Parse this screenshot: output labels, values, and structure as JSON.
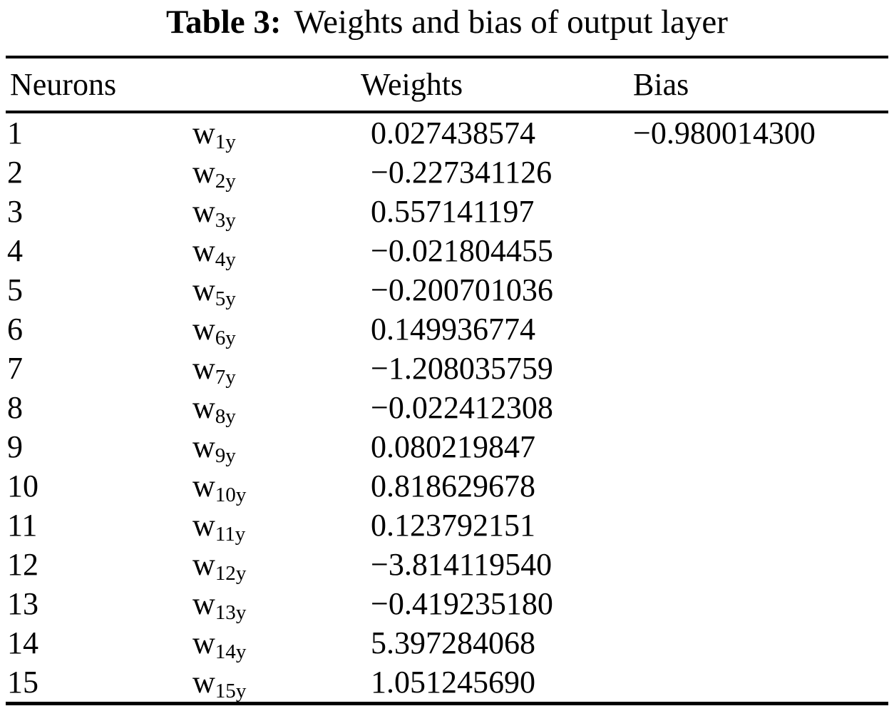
{
  "caption": {
    "label": "Table 3:",
    "text": "Weights and bias of output layer"
  },
  "table": {
    "headers": {
      "neurons": "Neurons",
      "weights": "Weights",
      "bias": "Bias"
    },
    "rows": [
      {
        "neuron": "1",
        "symbol_base": "w",
        "symbol_sub": "1y",
        "weight": "0.027438574",
        "bias": "−0.980014300"
      },
      {
        "neuron": "2",
        "symbol_base": "w",
        "symbol_sub": "2y",
        "weight": "−0.227341126",
        "bias": ""
      },
      {
        "neuron": "3",
        "symbol_base": "w",
        "symbol_sub": "3y",
        "weight": "0.557141197",
        "bias": ""
      },
      {
        "neuron": "4",
        "symbol_base": "w",
        "symbol_sub": "4y",
        "weight": "−0.021804455",
        "bias": ""
      },
      {
        "neuron": "5",
        "symbol_base": "w",
        "symbol_sub": "5y",
        "weight": "−0.200701036",
        "bias": ""
      },
      {
        "neuron": "6",
        "symbol_base": "w",
        "symbol_sub": "6y",
        "weight": "0.149936774",
        "bias": ""
      },
      {
        "neuron": "7",
        "symbol_base": "w",
        "symbol_sub": "7y",
        "weight": "−1.208035759",
        "bias": ""
      },
      {
        "neuron": "8",
        "symbol_base": "w",
        "symbol_sub": "8y",
        "weight": "−0.022412308",
        "bias": ""
      },
      {
        "neuron": "9",
        "symbol_base": "w",
        "symbol_sub": "9y",
        "weight": "0.080219847",
        "bias": ""
      },
      {
        "neuron": "10",
        "symbol_base": "w",
        "symbol_sub": "10y",
        "weight": "0.818629678",
        "bias": ""
      },
      {
        "neuron": "11",
        "symbol_base": "w",
        "symbol_sub": "11y",
        "weight": "0.123792151",
        "bias": ""
      },
      {
        "neuron": "12",
        "symbol_base": "w",
        "symbol_sub": "12y",
        "weight": "−3.814119540",
        "bias": ""
      },
      {
        "neuron": "13",
        "symbol_base": "w",
        "symbol_sub": "13y",
        "weight": "−0.419235180",
        "bias": ""
      },
      {
        "neuron": "14",
        "symbol_base": "w",
        "symbol_sub": "14y",
        "weight": "5.397284068",
        "bias": ""
      },
      {
        "neuron": "15",
        "symbol_base": "w",
        "symbol_sub": "15y",
        "weight": "1.051245690",
        "bias": ""
      }
    ]
  }
}
